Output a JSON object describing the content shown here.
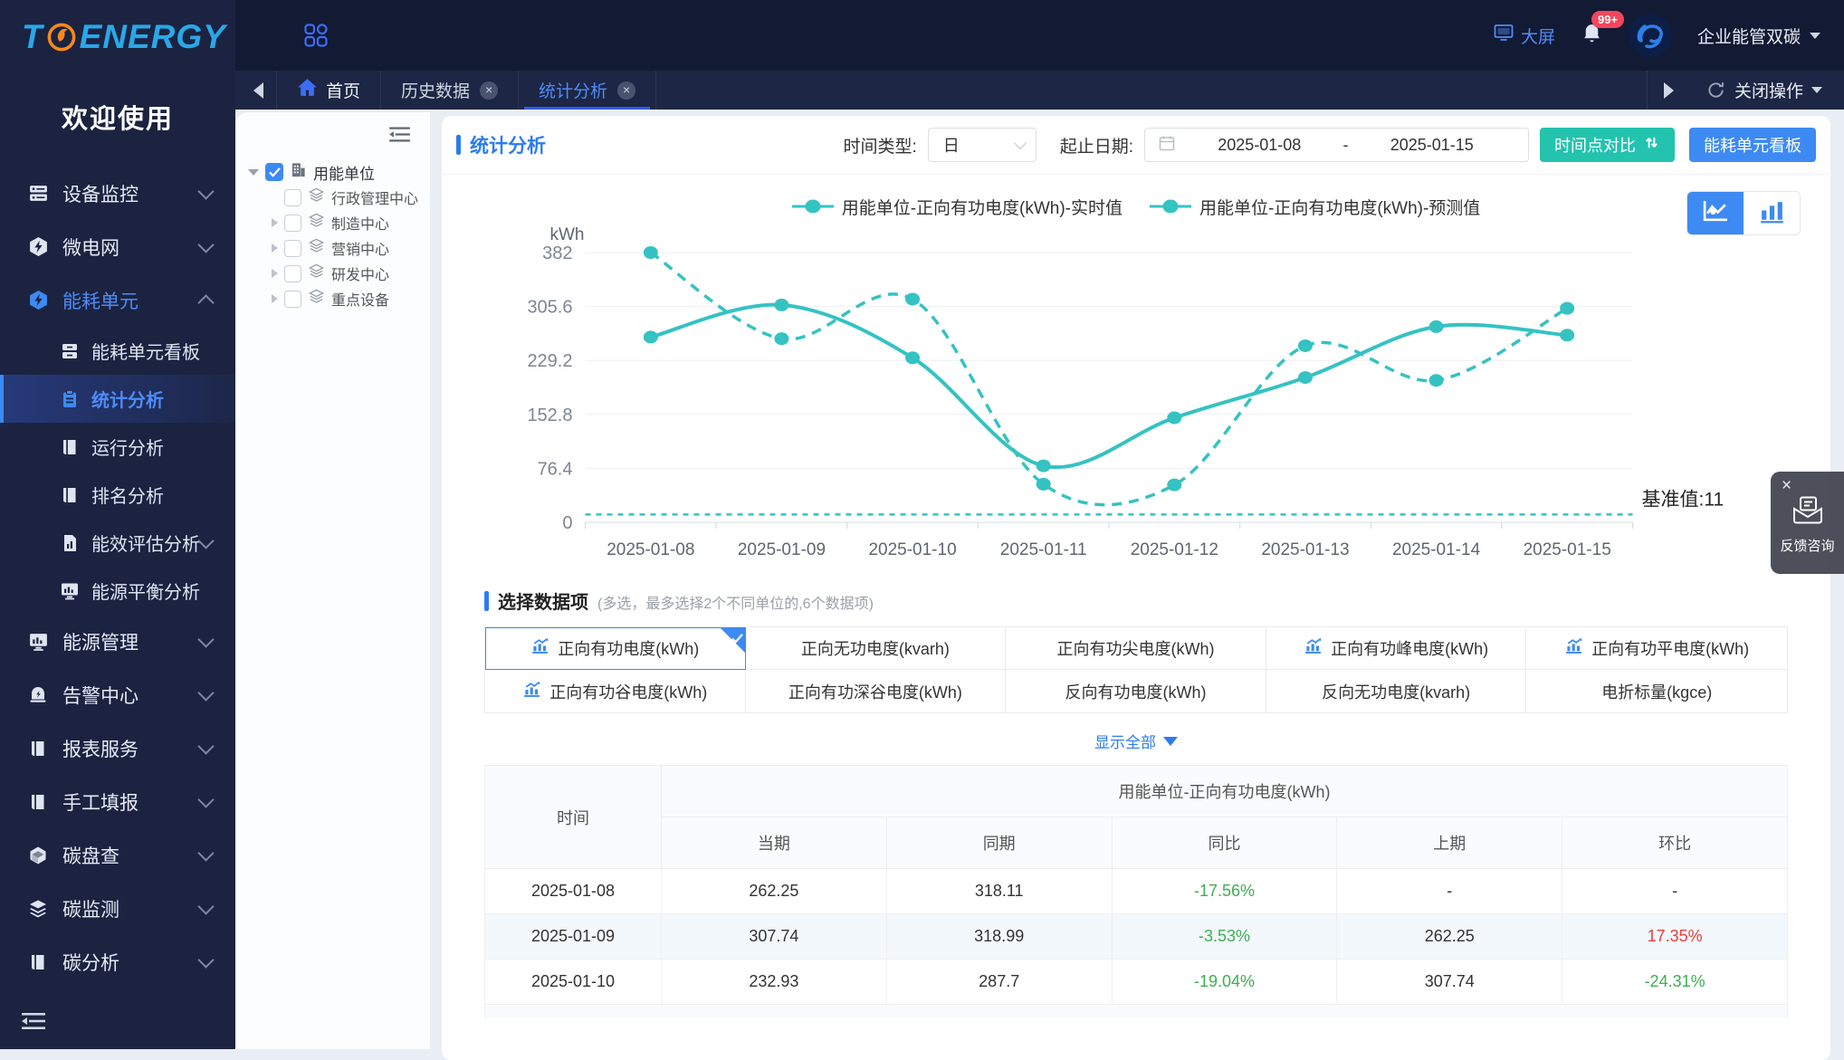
{
  "colors": {
    "accent": "#3d8af2",
    "teal": "#35c2c2",
    "green": "#3cb051",
    "red": "#ef3b3b",
    "sidebar_bg": "#1b2341",
    "topbar_bg": "#121a34"
  },
  "sidebar": {
    "logo_prefix": "T",
    "logo_suffix": "ENERGY",
    "welcome": "欢迎使用",
    "groups": [
      {
        "label": "设备监控",
        "icon": "server",
        "chevron": "down"
      },
      {
        "label": "微电网",
        "icon": "bolt",
        "chevron": "down"
      },
      {
        "label": "能耗单元",
        "icon": "bolt",
        "chevron": "up",
        "active": true,
        "children": [
          {
            "label": "能耗单元看板",
            "icon": "board"
          },
          {
            "label": "统计分析",
            "icon": "clipboard",
            "active": true
          },
          {
            "label": "运行分析",
            "icon": "book"
          },
          {
            "label": "排名分析",
            "icon": "book"
          },
          {
            "label": "能效评估分析",
            "icon": "doc-chart",
            "chevron": "down"
          },
          {
            "label": "能源平衡分析",
            "icon": "monitor"
          }
        ]
      },
      {
        "label": "能源管理",
        "icon": "monitor",
        "chevron": "down"
      },
      {
        "label": "告警中心",
        "icon": "bell",
        "chevron": "down"
      },
      {
        "label": "报表服务",
        "icon": "book",
        "chevron": "down"
      },
      {
        "label": "手工填报",
        "icon": "book",
        "chevron": "down"
      },
      {
        "label": "碳盘查",
        "icon": "cube",
        "chevron": "down"
      },
      {
        "label": "碳监测",
        "icon": "layers",
        "chevron": "down"
      },
      {
        "label": "碳分析",
        "icon": "book",
        "chevron": "down"
      }
    ]
  },
  "topbar": {
    "big_screen": "大屏",
    "badge": "99+",
    "org": "企业能管双碳"
  },
  "tabbar": {
    "home": "首页",
    "tabs": [
      {
        "label": "历史数据",
        "active": false
      },
      {
        "label": "统计分析",
        "active": true
      }
    ],
    "close_op": "关闭操作"
  },
  "tree": {
    "root": {
      "label": "用能单位",
      "checked": true
    },
    "children": [
      {
        "label": "行政管理中心",
        "caret": false
      },
      {
        "label": "制造中心",
        "caret": true
      },
      {
        "label": "营销中心",
        "caret": true
      },
      {
        "label": "研发中心",
        "caret": true
      },
      {
        "label": "重点设备",
        "caret": true
      }
    ]
  },
  "toolbar": {
    "title": "统计分析",
    "time_type_label": "时间类型:",
    "time_type_value": "日",
    "date_label": "起止日期:",
    "date_start": "2025-01-08",
    "date_sep": "-",
    "date_end": "2025-01-15",
    "btn_compare": "时间点对比",
    "btn_board": "能耗单元看板"
  },
  "chart_data": {
    "type": "line",
    "x": [
      "2025-01-08",
      "2025-01-09",
      "2025-01-10",
      "2025-01-11",
      "2025-01-12",
      "2025-01-13",
      "2025-01-14",
      "2025-01-15"
    ],
    "series": [
      {
        "name": "用能单位-正向有功电度(kWh)-实时值",
        "style": "solid",
        "color": "#35c2c2",
        "values": [
          262.25,
          307.74,
          232.93,
          80,
          148,
          205,
          277,
          265
        ]
      },
      {
        "name": "用能单位-正向有功电度(kWh)-预测值",
        "style": "dashed",
        "color": "#35c2c2",
        "values": [
          382,
          260,
          316,
          54,
          53,
          250,
          201,
          303
        ]
      }
    ],
    "baseline": {
      "label": "基准值:11",
      "value": 11
    },
    "ylabel": "kWh",
    "yticks": [
      0,
      76.4,
      152.8,
      229.2,
      305.6,
      382
    ],
    "ylim": [
      0,
      382
    ],
    "grid": true,
    "legend_position": "top-center"
  },
  "selector": {
    "title": "选择数据项",
    "hint": "(多选，最多选择2个不同单位的,6个数据项)",
    "show_all": "显示全部",
    "items": [
      {
        "label": "正向有功电度(kWh)",
        "icon": true,
        "selected": true
      },
      {
        "label": "正向无功电度(kvarh)",
        "icon": false,
        "selected": false
      },
      {
        "label": "正向有功尖电度(kWh)",
        "icon": false,
        "selected": false
      },
      {
        "label": "正向有功峰电度(kWh)",
        "icon": true,
        "selected": false
      },
      {
        "label": "正向有功平电度(kWh)",
        "icon": true,
        "selected": false
      },
      {
        "label": "正向有功谷电度(kWh)",
        "icon": true,
        "selected": false
      },
      {
        "label": "正向有功深谷电度(kWh)",
        "icon": false,
        "selected": false
      },
      {
        "label": "反向有功电度(kWh)",
        "icon": false,
        "selected": false
      },
      {
        "label": "反向无功电度(kvarh)",
        "icon": false,
        "selected": false
      },
      {
        "label": "电折标量(kgce)",
        "icon": false,
        "selected": false
      }
    ]
  },
  "table": {
    "col_time": "时间",
    "group_header": "用能单位-正向有功电度(kWh)",
    "sub_headers": [
      "当期",
      "同期",
      "同比",
      "上期",
      "环比"
    ],
    "rows": [
      {
        "time": "2025-01-08",
        "cells": [
          {
            "v": "262.25"
          },
          {
            "v": "318.11"
          },
          {
            "v": "-17.56%",
            "c": "green"
          },
          {
            "v": "-"
          },
          {
            "v": "-"
          }
        ]
      },
      {
        "time": "2025-01-09",
        "cells": [
          {
            "v": "307.74"
          },
          {
            "v": "318.99"
          },
          {
            "v": "-3.53%",
            "c": "green"
          },
          {
            "v": "262.25"
          },
          {
            "v": "17.35%",
            "c": "red"
          }
        ]
      },
      {
        "time": "2025-01-10",
        "cells": [
          {
            "v": "232.93"
          },
          {
            "v": "287.7"
          },
          {
            "v": "-19.04%",
            "c": "green"
          },
          {
            "v": "307.74"
          },
          {
            "v": "-24.31%",
            "c": "green"
          }
        ]
      }
    ]
  },
  "feedback": {
    "label": "反馈咨询",
    "close": "×"
  }
}
